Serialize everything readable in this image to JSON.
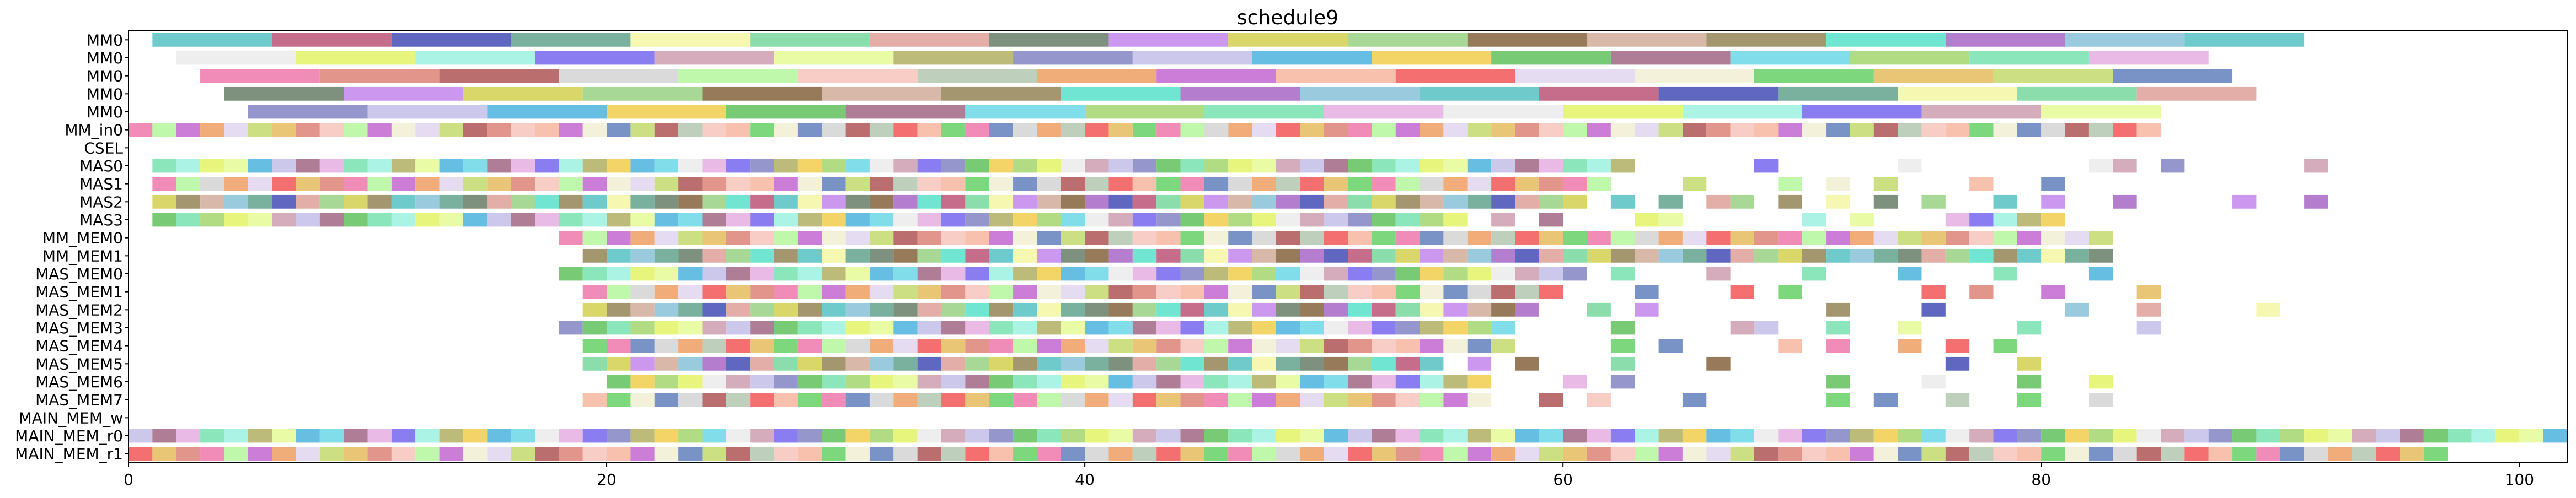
{
  "chart_data": {
    "type": "gantt",
    "title": "schedule9",
    "xlabel": "",
    "ylabel": "",
    "xlim": [
      0,
      102
    ],
    "xticks": [
      0,
      20,
      40,
      60,
      80,
      100
    ],
    "grid": false,
    "rows": [
      "MM0",
      "MM0",
      "MM0",
      "MM0",
      "MM0",
      "MM_in0",
      "CSEL",
      "MAS0",
      "MAS1",
      "MAS2",
      "MAS3",
      "MM_MEM0",
      "MM_MEM1",
      "MAS_MEM0",
      "MAS_MEM1",
      "MAS_MEM2",
      "MAS_MEM3",
      "MAS_MEM4",
      "MAS_MEM5",
      "MAS_MEM6",
      "MAS_MEM7",
      "MAIN_MEM_w",
      "MAIN_MEM_r0",
      "MAIN_MEM_r1"
    ],
    "palette": [
      "#5fc5c5",
      "#7ee3b5",
      "#6fd36f",
      "#c05d7f",
      "#e8b3e3",
      "#e6c067",
      "#4e57b9",
      "#ececec",
      "#c7dc74",
      "#6aa793",
      "#e6f46f",
      "#6a87c1",
      "#f5f6a8",
      "#a1f2e2",
      "#ef7fb0",
      "#7ed9a3",
      "#7d6ef0",
      "#df8b7e",
      "#e0a59d",
      "#cfa3b5",
      "#b25e5e",
      "#6f8570",
      "#e8fb9b",
      "#d6d6d6",
      "#c78ced",
      "#b6b46c",
      "#b8f6a2",
      "#d6d35a",
      "#8a8cc6",
      "#f6c8c0",
      "#9ed48a",
      "#c6c2ea",
      "#b7cbb4",
      "#8c6c48",
      "#55b8e0",
      "#f0a46a",
      "#d4b0a0",
      "#f2cf56",
      "#c56fd4",
      "#9a8c60",
      "#69c466",
      "#f6baa4",
      "#60e3cd",
      "#a66f8a",
      "#f36060",
      "#ad6fc8",
      "#73d9e7",
      "#e2d8f0",
      "#8ec4d9",
      "#a9d876",
      "#f3f0d7"
    ],
    "segments": {
      "mm": [
        {
          "row": 0,
          "start": 1,
          "bars": [
            5,
            5,
            5,
            5,
            5,
            5,
            5,
            5,
            5,
            5,
            5,
            5,
            5,
            5,
            5,
            5,
            5,
            5
          ]
        },
        {
          "row": 1,
          "start": 2,
          "bars": [
            5,
            5,
            5,
            5,
            5,
            5,
            5,
            5,
            5,
            5,
            5,
            5,
            5,
            5,
            5,
            5,
            5
          ]
        },
        {
          "row": 2,
          "start": 3,
          "bars": [
            5,
            5,
            5,
            5,
            5,
            5,
            5,
            5,
            5,
            5,
            5,
            5,
            5,
            5,
            5,
            5,
            5
          ]
        },
        {
          "row": 3,
          "start": 4,
          "bars": [
            5,
            5,
            5,
            5,
            5,
            5,
            5,
            5,
            5,
            5,
            5,
            5,
            5,
            5,
            5,
            5,
            5
          ]
        },
        {
          "row": 4,
          "start": 5,
          "bars": [
            5,
            5,
            5,
            5,
            5,
            5,
            5,
            5,
            5,
            5,
            5,
            5,
            5,
            5,
            5,
            5
          ]
        }
      ],
      "unit_rows": [
        {
          "row": 5,
          "cells": "0-84"
        },
        {
          "row": 7,
          "cells": "1-62,68,74,82,83,85,91"
        },
        {
          "row": 8,
          "cells": "1-61,65,69,71,73,77,80"
        },
        {
          "row": 9,
          "cells": "1-60,62,64,66,67,69,71,73,75,78,80,83,88,91"
        },
        {
          "row": 10,
          "cells": "1-55,57,59,63,64,70,72,76-80"
        },
        {
          "row": 11,
          "cells": "18-82"
        },
        {
          "row": 12,
          "cells": "19-82"
        },
        {
          "row": 13,
          "cells": "18-60,62,66,70,74,78,82"
        },
        {
          "row": 14,
          "cells": "19-59,63,67,69,75,77,80,84"
        },
        {
          "row": 15,
          "cells": "19-58,61,63,71,75,81,84,89"
        },
        {
          "row": 16,
          "cells": "18-57,62,67,68,71,74,79,84"
        },
        {
          "row": 17,
          "cells": "19-57,62,64,69,71,74,76,78"
        },
        {
          "row": 18,
          "cells": "19-54,56,58,62,66,76,79"
        },
        {
          "row": 19,
          "cells": "20-56,60,62,71,75,79,82"
        },
        {
          "row": 20,
          "cells": "19-56,59,61,65,71,73,76,79,82"
        },
        {
          "row": 22,
          "cells": "0-101"
        },
        {
          "row": 23,
          "cells": "0-96"
        }
      ]
    }
  }
}
